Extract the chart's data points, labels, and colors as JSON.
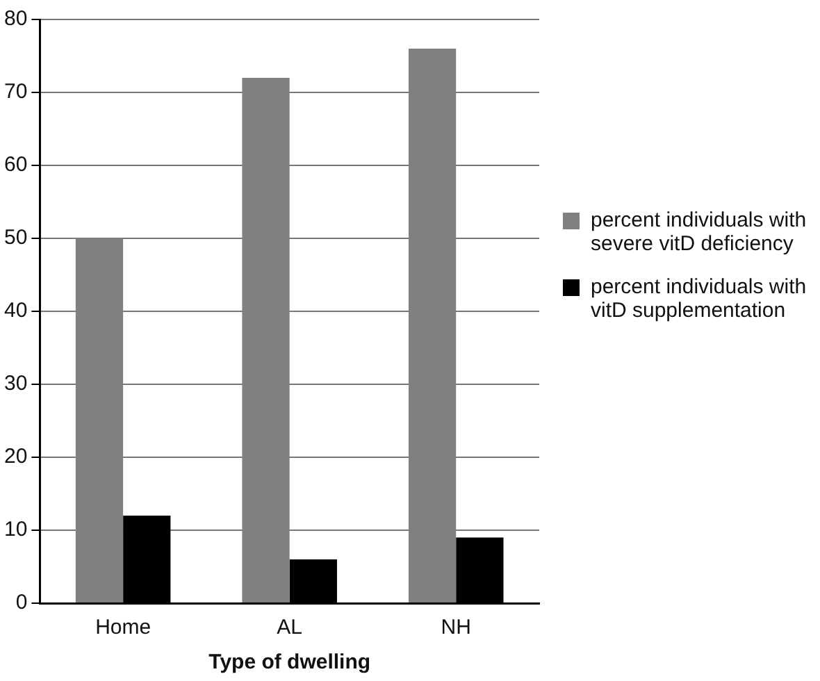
{
  "chart_data": {
    "type": "bar",
    "xlabel": "Type of dwelling",
    "categories": [
      "Home",
      "AL",
      "NH"
    ],
    "series": [
      {
        "name": "percent individuals with severe vitD deficiency",
        "color": "#808080",
        "values": [
          50,
          72,
          76
        ]
      },
      {
        "name": "percent individuals with vitD supplementation",
        "color": "#000000",
        "values": [
          12,
          6,
          9
        ]
      }
    ],
    "ylim": [
      0,
      80
    ],
    "yticks": [
      0,
      10,
      20,
      30,
      40,
      50,
      60,
      70,
      80
    ],
    "grid": "y",
    "legend": "right"
  }
}
